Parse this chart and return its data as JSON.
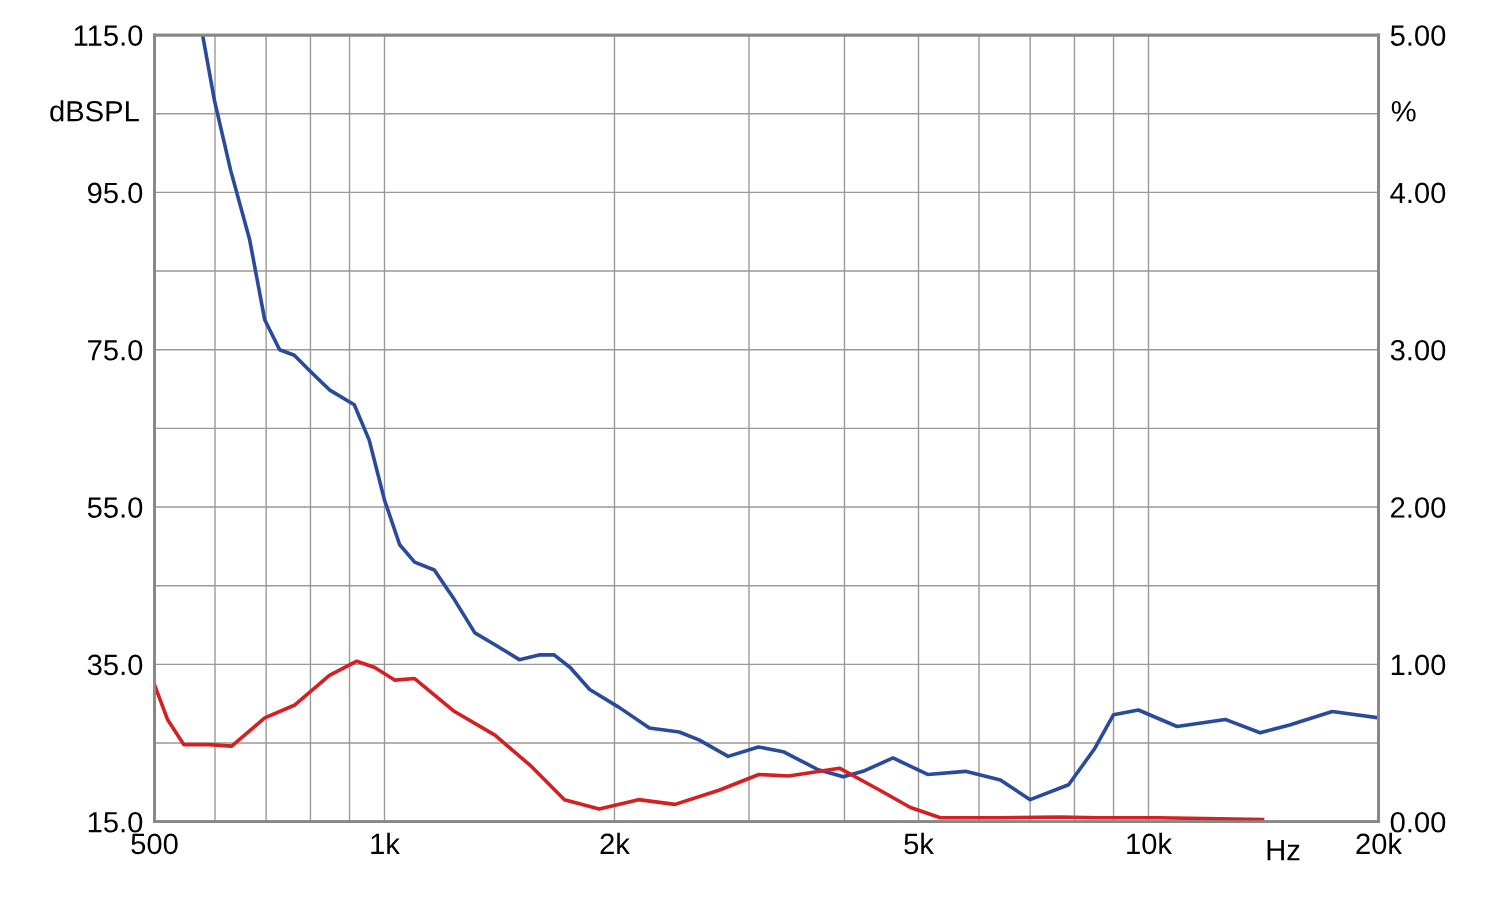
{
  "chart_data": {
    "type": "line",
    "xlabel": "Hz",
    "ylabel": "dBSPL",
    "y2label": "%",
    "log": "x",
    "grid": true,
    "line_style": "solid",
    "marker": "none",
    "xlim": [
      500,
      20000
    ],
    "xticks": [
      {
        "value": 500,
        "label": "500"
      },
      {
        "value": 600,
        "label": null
      },
      {
        "value": 700,
        "label": null
      },
      {
        "value": 800,
        "label": null
      },
      {
        "value": 900,
        "label": null
      },
      {
        "value": 1000,
        "label": "1k"
      },
      {
        "value": 2000,
        "label": "2k"
      },
      {
        "value": 3000,
        "label": null
      },
      {
        "value": 4000,
        "label": null
      },
      {
        "value": 5000,
        "label": "5k"
      },
      {
        "value": 6000,
        "label": null
      },
      {
        "value": 7000,
        "label": null
      },
      {
        "value": 8000,
        "label": null
      },
      {
        "value": 9000,
        "label": null
      },
      {
        "value": 10000,
        "label": "10k"
      },
      {
        "value": 20000,
        "label": "20k"
      }
    ],
    "ylim": [
      15,
      115
    ],
    "yticks": [
      {
        "value": 15,
        "label": "15.0"
      },
      {
        "value": 25,
        "label": null
      },
      {
        "value": 35,
        "label": "35.0"
      },
      {
        "value": 45,
        "label": null
      },
      {
        "value": 55,
        "label": "55.0"
      },
      {
        "value": 65,
        "label": null
      },
      {
        "value": 75,
        "label": "75.0"
      },
      {
        "value": 85,
        "label": null
      },
      {
        "value": 95,
        "label": "95.0"
      },
      {
        "value": 105,
        "label": null
      },
      {
        "value": 115,
        "label": "115.0"
      }
    ],
    "y2lim": [
      0,
      5
    ],
    "y2ticks": [
      {
        "value": 0,
        "label": "0.00"
      },
      {
        "value": 1,
        "label": "1.00"
      },
      {
        "value": 2,
        "label": "2.00"
      },
      {
        "value": 3,
        "label": "3.00"
      },
      {
        "value": 4,
        "label": "4.00"
      },
      {
        "value": 5,
        "label": "5.00"
      }
    ],
    "series": [
      {
        "color": "#2a4a9c",
        "x": [
          578,
          599,
          629,
          666,
          697,
          729,
          762,
          797,
          847,
          913,
          955,
          1000,
          1047,
          1095,
          1162,
          1235,
          1313,
          1395,
          1501,
          1593,
          1667,
          1750,
          1856,
          2030,
          2222,
          2431,
          2580,
          2817,
          3086,
          3326,
          3696,
          3986,
          4230,
          4630,
          5140,
          5760,
          6400,
          7000,
          7860,
          8490,
          9000,
          9700,
          10900,
          12600,
          14000,
          15300,
          17400,
          20000
        ],
        "values": [
          115,
          106.7,
          97.8,
          89.0,
          78.8,
          75.0,
          74.3,
          72.4,
          69.9,
          68.0,
          63.5,
          55.9,
          50.2,
          48.0,
          47.0,
          43.2,
          39.0,
          37.5,
          35.6,
          36.2,
          36.2,
          34.6,
          31.8,
          29.5,
          26.9,
          26.4,
          25.4,
          23.3,
          24.5,
          23.9,
          21.6,
          20.7,
          21.4,
          23.1,
          21.0,
          21.4,
          20.3,
          17.8,
          19.7,
          24.2,
          28.6,
          29.2,
          27.1,
          28.0,
          26.3,
          27.3,
          29.0,
          28.2
        ]
      },
      {
        "color": "#d42020",
        "axis": "y2",
        "x": [
          500,
          520,
          546,
          590,
          631,
          697,
          762,
          847,
          920,
          971,
          1031,
          1095,
          1235,
          1395,
          1550,
          1720,
          1910,
          2150,
          2400,
          2740,
          3090,
          3380,
          3940,
          4450,
          4880,
          5340,
          6400,
          7650,
          8600,
          10300,
          14100
        ],
        "values": [
          0.87,
          0.65,
          0.49,
          0.49,
          0.48,
          0.66,
          0.74,
          0.93,
          1.02,
          0.98,
          0.9,
          0.91,
          0.7,
          0.55,
          0.36,
          0.14,
          0.08,
          0.14,
          0.11,
          0.2,
          0.3,
          0.29,
          0.34,
          0.2,
          0.09,
          0.025,
          0.025,
          0.03,
          0.025,
          0.025,
          0.013
        ]
      }
    ]
  }
}
